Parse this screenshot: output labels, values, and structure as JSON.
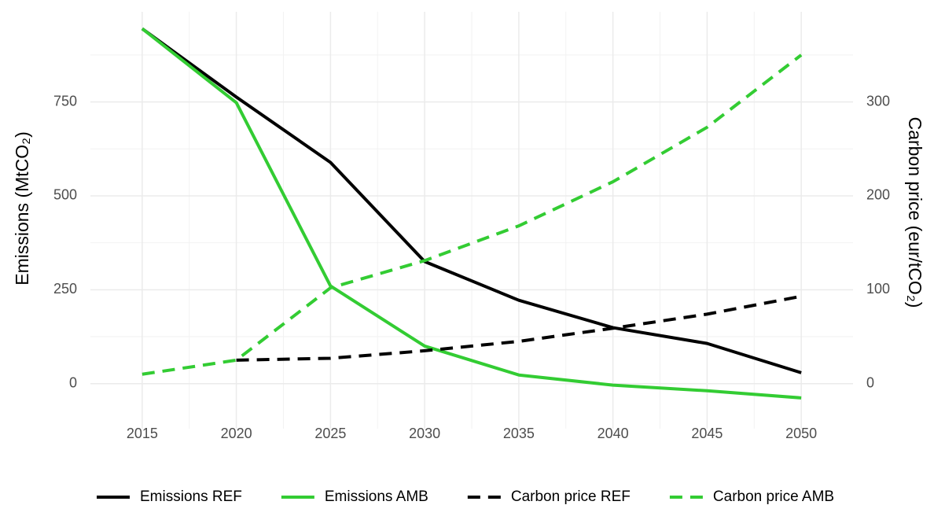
{
  "chart_data": {
    "type": "line",
    "x": [
      2015,
      2020,
      2025,
      2030,
      2035,
      2040,
      2045,
      2050
    ],
    "xlim": [
      2012.25,
      2052.75
    ],
    "xticks": [
      2015,
      2020,
      2025,
      2030,
      2035,
      2040,
      2045,
      2050
    ],
    "xminorticks": [
      2017.5,
      2022.5,
      2027.5,
      2032.5,
      2037.5,
      2042.5,
      2047.5
    ],
    "ylabel": "Emissions  (MtCO₂)",
    "ylim": [
      -120,
      990
    ],
    "yticks": [
      0,
      250,
      500,
      750
    ],
    "yminorticks": [
      125,
      375,
      625,
      875
    ],
    "y2label": "Carbon price  (eur/tCO₂)",
    "y2lim": [
      -48,
      396
    ],
    "y2ticks": [
      0,
      100,
      200,
      300
    ],
    "grid": true,
    "legend": "bottom",
    "series": [
      {
        "name": "Emissions REF",
        "color": "#000000",
        "dashed": false,
        "values": [
          945,
          763,
          589,
          325,
          222,
          149,
          107,
          29
        ]
      },
      {
        "name": "Emissions AMB",
        "color": "#33cc33",
        "dashed": false,
        "values": [
          945,
          748,
          260,
          100,
          23,
          -4,
          -19,
          -38
        ]
      },
      {
        "name": "Carbon price REF",
        "color": "#000000",
        "dashed": true,
        "axis": "y2",
        "values": [
          null,
          25,
          27,
          35,
          45,
          59,
          74,
          93
        ]
      },
      {
        "name": "Carbon price AMB",
        "color": "#33cc33",
        "dashed": true,
        "axis": "y2",
        "values": [
          10,
          25,
          102,
          131,
          168,
          215,
          273,
          350
        ]
      }
    ]
  }
}
